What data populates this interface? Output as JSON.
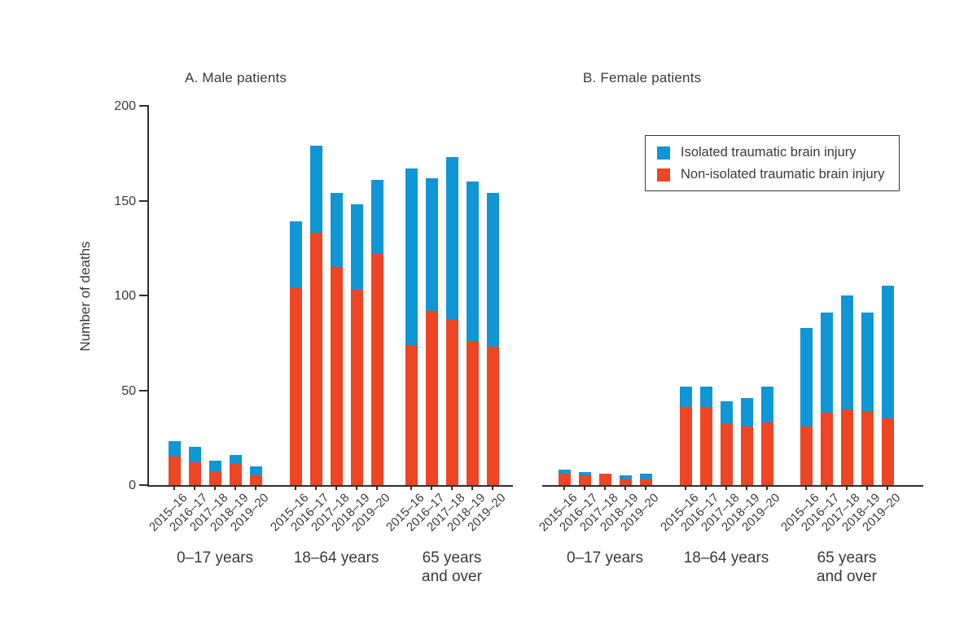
{
  "legend": {
    "items": [
      {
        "label": "Isolated traumatic brain injury",
        "color": "#1096d5"
      },
      {
        "label": "Non-isolated traumatic brain injury",
        "color": "#ee4524"
      }
    ]
  },
  "colors": {
    "isolated": "#1096d5",
    "non_isolated": "#ee4524",
    "axis": "#2e2e2e",
    "text": "#3a3a3a",
    "background": "#ffffff"
  },
  "chart_data": [
    {
      "type": "bar",
      "stacked": true,
      "title": "A. Male patients",
      "ylabel": "Number of deaths",
      "ylim": [
        0,
        200
      ],
      "yticks": [
        0,
        50,
        100,
        150,
        200
      ],
      "grid": false,
      "legend_position": "upper right of figure",
      "categories": [
        "2015–16",
        "2016–17",
        "2017–18",
        "2018–19",
        "2019–20"
      ],
      "groups": [
        {
          "label": "0–17 years",
          "label_lines": [
            "0–17 years"
          ],
          "series": [
            {
              "name": "Isolated traumatic brain injury",
              "values": [
                8,
                8,
                6,
                5,
                5
              ]
            },
            {
              "name": "Non-isolated traumatic brain injury",
              "values": [
                15,
                12,
                7,
                11,
                5
              ]
            }
          ]
        },
        {
          "label": "18–64 years",
          "label_lines": [
            "18–64 years"
          ],
          "series": [
            {
              "name": "Isolated traumatic brain injury",
              "values": [
                35,
                46,
                39,
                45,
                39
              ]
            },
            {
              "name": "Non-isolated traumatic brain injury",
              "values": [
                104,
                133,
                115,
                103,
                122
              ]
            }
          ]
        },
        {
          "label": "65 years and over",
          "label_lines": [
            "65 years",
            "and over"
          ],
          "series": [
            {
              "name": "Isolated traumatic brain injury",
              "values": [
                93,
                70,
                86,
                84,
                81
              ]
            },
            {
              "name": "Non-isolated traumatic brain injury",
              "values": [
                74,
                92,
                87,
                76,
                73
              ]
            }
          ]
        }
      ]
    },
    {
      "type": "bar",
      "stacked": true,
      "title": "B. Female patients",
      "ylabel": "Number of deaths",
      "ylim": [
        0,
        200
      ],
      "yticks": [
        0,
        50,
        100,
        150,
        200
      ],
      "grid": false,
      "categories": [
        "2015–16",
        "2016–17",
        "2017–18",
        "2018–19",
        "2019–20"
      ],
      "groups": [
        {
          "label": "0–17 years",
          "label_lines": [
            "0–17 years"
          ],
          "series": [
            {
              "name": "Isolated traumatic brain injury",
              "values": [
                2,
                2,
                0,
                2,
                3
              ]
            },
            {
              "name": "Non-isolated traumatic brain injury",
              "values": [
                6,
                5,
                6,
                3,
                3
              ]
            }
          ]
        },
        {
          "label": "18–64 years",
          "label_lines": [
            "18–64 years"
          ],
          "series": [
            {
              "name": "Isolated traumatic brain injury",
              "values": [
                11,
                11,
                12,
                15,
                19
              ]
            },
            {
              "name": "Non-isolated traumatic brain injury",
              "values": [
                41,
                41,
                32,
                31,
                33
              ]
            }
          ]
        },
        {
          "label": "65 years and over",
          "label_lines": [
            "65 years",
            "and over"
          ],
          "series": [
            {
              "name": "Isolated traumatic brain injury",
              "values": [
                52,
                53,
                60,
                52,
                70
              ]
            },
            {
              "name": "Non-isolated traumatic brain injury",
              "values": [
                31,
                38,
                40,
                39,
                35
              ]
            }
          ]
        }
      ]
    }
  ]
}
